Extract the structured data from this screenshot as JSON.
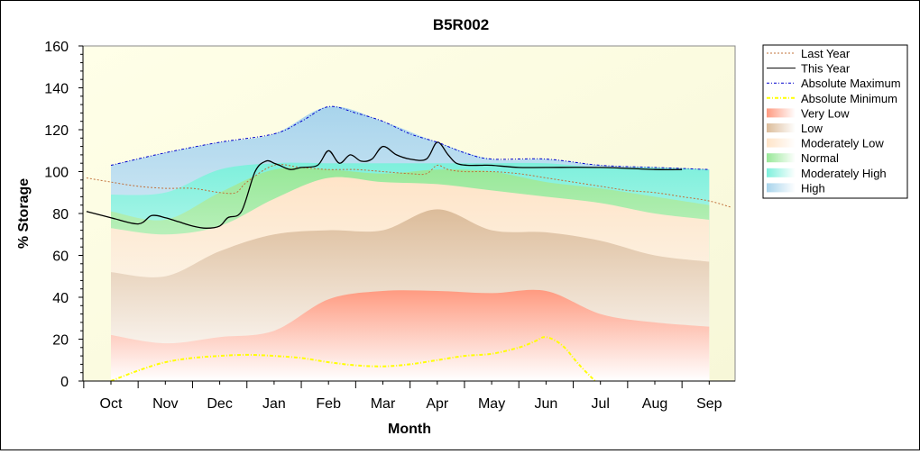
{
  "chart_data": {
    "type": "area",
    "title": "B5R002",
    "xlabel": "Month",
    "ylabel": "% Storage",
    "ylim": [
      0,
      160
    ],
    "yticks": [
      0,
      20,
      40,
      60,
      80,
      100,
      120,
      140,
      160
    ],
    "categories": [
      "Oct",
      "Nov",
      "Dec",
      "Jan",
      "Feb",
      "Mar",
      "Apr",
      "May",
      "Jun",
      "Jul",
      "Aug",
      "Sep"
    ],
    "grid": false,
    "legend_position": "right",
    "legend": [
      {
        "label": "Last Year",
        "kind": "line",
        "color": "#c0703a",
        "dash": "2,2"
      },
      {
        "label": "This Year",
        "kind": "line",
        "color": "#000000",
        "dash": ""
      },
      {
        "label": "Absolute Maximum",
        "kind": "line",
        "color": "#0000cc",
        "dash": "3,2,1,2"
      },
      {
        "label": "Absolute Minimum",
        "kind": "line",
        "color": "#ffff00",
        "dash": "4,2,1,2"
      },
      {
        "label": "Very Low",
        "kind": "band",
        "color": "#ff9a80"
      },
      {
        "label": "Low",
        "kind": "band",
        "color": "#dcbc9a"
      },
      {
        "label": "Moderately Low",
        "kind": "band",
        "color": "#ffe4c8"
      },
      {
        "label": "Normal",
        "kind": "band",
        "color": "#98e898"
      },
      {
        "label": "Moderately High",
        "kind": "band",
        "color": "#7ef0dc"
      },
      {
        "label": "High",
        "kind": "band",
        "color": "#a8d4ec"
      }
    ],
    "band_x": [
      0,
      1,
      2,
      3,
      4,
      5,
      6,
      7,
      8,
      9,
      10,
      11
    ],
    "bands": [
      {
        "name": "Very Low",
        "color": "#ff9a80",
        "upper": [
          22,
          18,
          21,
          24,
          39,
          43,
          43,
          42,
          43,
          32,
          28,
          26
        ]
      },
      {
        "name": "Low",
        "color": "#dcbc9a",
        "upper": [
          52,
          50,
          62,
          70,
          72,
          72,
          82,
          72,
          71,
          67,
          60,
          57
        ]
      },
      {
        "name": "Moderately Low",
        "color": "#ffe4c8",
        "upper": [
          73,
          70,
          74,
          87,
          97,
          95,
          94,
          91,
          88,
          85,
          80,
          77
        ]
      },
      {
        "name": "Normal",
        "color": "#98e898",
        "upper": [
          81,
          77,
          90,
          101,
          101,
          99,
          101,
          100,
          95,
          92,
          88,
          84
        ]
      },
      {
        "name": "Moderately High",
        "color": "#7ef0dc",
        "upper": [
          89,
          90,
          101,
          104,
          104,
          104,
          104,
          104,
          104,
          102,
          102,
          101
        ]
      },
      {
        "name": "High",
        "color": "#a8d4ec",
        "upper": [
          103,
          109,
          114,
          118,
          131,
          124,
          114,
          106,
          106,
          103,
          102,
          101
        ]
      }
    ],
    "series": [
      {
        "name": "Last Year",
        "color": "#c0703a",
        "x": [
          -0.45,
          0,
          0.5,
          1,
          1.5,
          2,
          2.3,
          2.5,
          3,
          3.5,
          4,
          4.5,
          5,
          5.5,
          5.8,
          6,
          6.2,
          6.5,
          7,
          7.5,
          8,
          8.5,
          9,
          9.5,
          10,
          10.5,
          11,
          11.4
        ],
        "y": [
          97,
          95,
          93,
          92,
          92,
          90,
          90,
          95,
          103,
          102,
          101,
          101,
          100,
          99,
          99,
          103,
          101,
          100,
          100,
          99,
          97,
          95,
          93,
          91,
          90,
          88,
          86,
          83
        ]
      },
      {
        "name": "This Year",
        "color": "#000000",
        "x": [
          -0.45,
          0,
          0.5,
          0.75,
          1,
          1.25,
          1.5,
          1.75,
          2,
          2.15,
          2.4,
          2.65,
          2.85,
          3,
          3.1,
          3.3,
          3.5,
          3.8,
          4,
          4.2,
          4.4,
          4.6,
          4.8,
          5,
          5.25,
          5.5,
          5.8,
          6,
          6.2,
          6.35,
          6.55,
          6.8,
          7,
          7.5,
          8,
          9,
          10,
          10.5
        ],
        "y": [
          81,
          78,
          75,
          79,
          78,
          76,
          74,
          73,
          74,
          78,
          81,
          100,
          105,
          104,
          103,
          101,
          102,
          103,
          110,
          104,
          108,
          105,
          106,
          112,
          108,
          106,
          106,
          114,
          108,
          104,
          103,
          103,
          103,
          102,
          102,
          102,
          101,
          101
        ]
      },
      {
        "name": "Absolute Maximum",
        "color": "#0000cc",
        "x": [
          0,
          1,
          2,
          3,
          3.5,
          4,
          4.5,
          5,
          5.5,
          6,
          6.5,
          7,
          8,
          9,
          10,
          11
        ],
        "y": [
          103,
          109,
          114,
          118,
          124,
          131,
          128,
          124,
          118,
          114,
          109,
          106,
          106,
          103,
          102,
          101
        ]
      },
      {
        "name": "Absolute Minimum",
        "color": "#ffff00",
        "x": [
          0,
          0.5,
          1,
          1.5,
          2,
          2.5,
          3,
          3.5,
          4,
          4.5,
          5,
          5.5,
          6,
          6.5,
          7,
          7.5,
          7.8,
          8,
          8.3,
          8.6,
          8.9
        ],
        "y": [
          0,
          5,
          9,
          11,
          12,
          12.5,
          12,
          11,
          9,
          7.5,
          7,
          8,
          10,
          12,
          13,
          16,
          19,
          21,
          17,
          8,
          0
        ]
      }
    ]
  }
}
